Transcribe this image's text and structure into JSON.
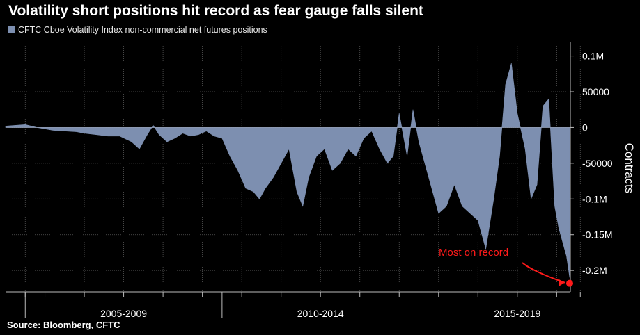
{
  "chart_data": {
    "type": "area",
    "title": "Volatility short positions hit record as fear gauge falls silent",
    "legend": "CFTC Cboe Volatility Index non-commercial net futures positions",
    "ylabel": "Contracts",
    "ylim": [
      -0.23,
      0.12
    ],
    "y_unit": "millions of contracts",
    "y_ticks": [
      {
        "value": 0.1,
        "label": "0.1M"
      },
      {
        "value": 0.05,
        "label": "50000"
      },
      {
        "value": 0,
        "label": "0"
      },
      {
        "value": -0.05,
        "label": "-50000"
      },
      {
        "value": -0.1,
        "label": "-0.1M"
      },
      {
        "value": -0.15,
        "label": "-0.15M"
      },
      {
        "value": -0.2,
        "label": "-0.2M"
      }
    ],
    "x_range": [
      2004.0,
      2018.33
    ],
    "x_periods": [
      {
        "label": "2005-2009",
        "center": 2007.0
      },
      {
        "label": "2010-2014",
        "center": 2012.0
      },
      {
        "label": "2015-2019",
        "center": 2017.0
      }
    ],
    "x_year_ticks": [
      2004.5,
      2005,
      2006,
      2007,
      2008,
      2009,
      2010,
      2011,
      2012,
      2013,
      2014,
      2015,
      2016,
      2017,
      2018,
      2018.6
    ],
    "x_period_dividers": [
      2004.5,
      2009.5,
      2014.5
    ],
    "series": [
      {
        "name": "CFTC Cboe Volatility Index non-commercial net futures positions",
        "color": "#7d8fb0",
        "x": [
          2004.0,
          2004.5,
          2004.8,
          2005.0,
          2005.2,
          2005.5,
          2005.8,
          2006.0,
          2006.3,
          2006.6,
          2006.9,
          2007.2,
          2007.4,
          2007.6,
          2007.75,
          2007.9,
          2008.1,
          2008.3,
          2008.5,
          2008.7,
          2008.9,
          2009.1,
          2009.3,
          2009.5,
          2009.7,
          2009.9,
          2010.1,
          2010.3,
          2010.45,
          2010.6,
          2010.8,
          2011.0,
          2011.2,
          2011.4,
          2011.55,
          2011.7,
          2011.9,
          2012.1,
          2012.3,
          2012.5,
          2012.7,
          2012.9,
          2013.1,
          2013.3,
          2013.5,
          2013.7,
          2013.85,
          2014.0,
          2014.2,
          2014.35,
          2014.5,
          2014.7,
          2014.85,
          2015.0,
          2015.2,
          2015.4,
          2015.6,
          2015.8,
          2016.0,
          2016.2,
          2016.4,
          2016.55,
          2016.7,
          2016.85,
          2017.0,
          2017.2,
          2017.35,
          2017.5,
          2017.65,
          2017.8,
          2017.95,
          2018.05,
          2018.15,
          2018.25,
          2018.33
        ],
        "y": [
          0.002,
          0.004,
          0.0,
          -0.002,
          -0.004,
          -0.005,
          -0.006,
          -0.008,
          -0.01,
          -0.012,
          -0.012,
          -0.02,
          -0.03,
          -0.01,
          0.003,
          -0.01,
          -0.02,
          -0.015,
          -0.008,
          -0.012,
          -0.01,
          -0.005,
          -0.012,
          -0.015,
          -0.04,
          -0.06,
          -0.085,
          -0.09,
          -0.1,
          -0.085,
          -0.07,
          -0.05,
          -0.03,
          -0.09,
          -0.11,
          -0.07,
          -0.04,
          -0.03,
          -0.06,
          -0.05,
          -0.03,
          -0.04,
          -0.015,
          -0.005,
          -0.03,
          -0.05,
          -0.04,
          0.02,
          -0.04,
          0.025,
          -0.02,
          -0.06,
          -0.09,
          -0.12,
          -0.11,
          -0.08,
          -0.11,
          -0.12,
          -0.13,
          -0.17,
          -0.1,
          -0.04,
          0.06,
          0.09,
          0.02,
          -0.03,
          -0.1,
          -0.08,
          0.03,
          0.04,
          -0.11,
          -0.14,
          -0.16,
          -0.18,
          -0.21
        ]
      }
    ],
    "annotation": {
      "text": "Most on record",
      "x": 2018.33,
      "y": -0.218,
      "color": "#ff1a1a"
    }
  }
}
